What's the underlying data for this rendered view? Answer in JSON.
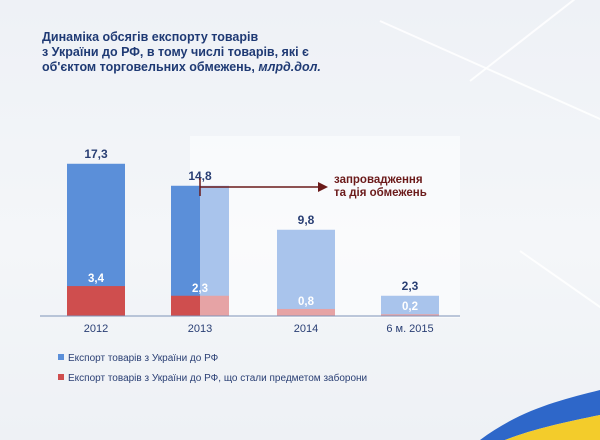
{
  "title": {
    "lines": [
      "Динаміка обсягів експорту товарів",
      "з України до РФ, в тому числі товарів, які є",
      "об'єктом торговельних обмежень,"
    ],
    "unit": "млрд.дол."
  },
  "annotation": {
    "lines": [
      "запровадження",
      "та дія обмежень"
    ]
  },
  "colors": {
    "blue": "#5b8fd9",
    "blue_light": "#a9c4ec",
    "red": "#cf4e4e",
    "red_light": "#e6a3a5",
    "label": "#2a3f74",
    "arrow": "#6b1a1a",
    "flag_blue": "#2e67c9",
    "flag_yellow": "#f3cc2b"
  },
  "chart_data": {
    "type": "bar",
    "categories": [
      "2012",
      "2013",
      "2014",
      "6 м. 2015"
    ],
    "series": [
      {
        "name": "Експорт товарів з України до РФ",
        "values": [
          17.3,
          14.8,
          9.8,
          2.3
        ]
      },
      {
        "name": "Експорт товарів з України до РФ, що стали предметом заборони",
        "values": [
          3.4,
          2.3,
          0.8,
          0.2
        ]
      }
    ],
    "value_labels": [
      [
        "17,3",
        "14,8",
        "9,8",
        "2,3"
      ],
      [
        "3,4",
        "2,3",
        "0,8",
        "0,2"
      ]
    ],
    "ylim": [
      0,
      20
    ],
    "legend_position": "bottom-left",
    "grid": false
  },
  "legend": [
    {
      "label": "Експорт товарів з України до РФ",
      "color": "#5b8fd9"
    },
    {
      "label": "Експорт товарів з України до РФ, що стали предметом заборони",
      "color": "#cf4e4e"
    }
  ]
}
